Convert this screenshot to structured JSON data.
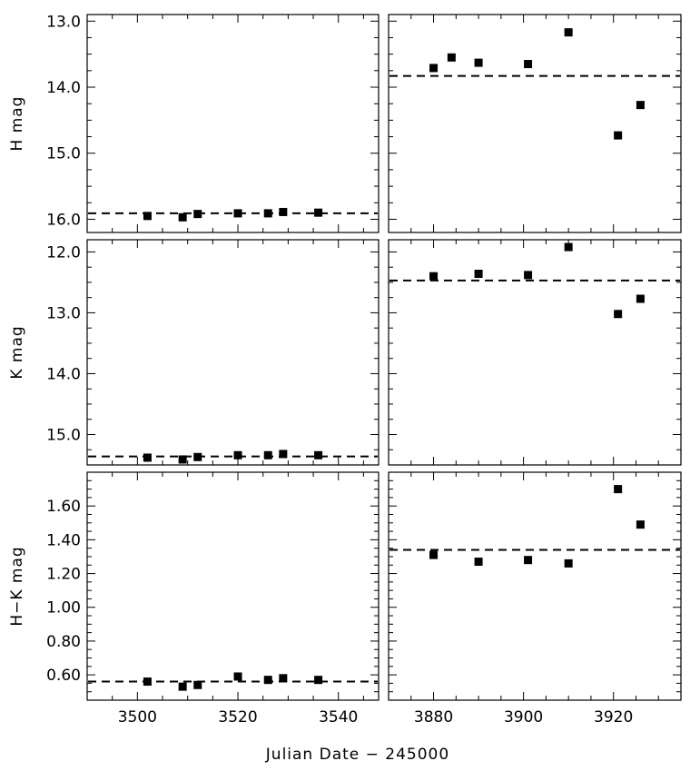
{
  "chart_data": [
    {
      "type": "scatter",
      "panel": "H-left",
      "ylabel": "H mag",
      "xlim": [
        3490,
        3548
      ],
      "ylim": [
        16.2,
        12.9
      ],
      "y_inverted": true,
      "yticks": [
        13.0,
        14.0,
        15.0,
        16.0
      ],
      "ytick_labels": [
        "13.0",
        "14.0",
        "15.0",
        "16.0"
      ],
      "x_tick_labels_visible": false,
      "reference_line": 15.91,
      "points": [
        {
          "x": 3502,
          "y": 15.95
        },
        {
          "x": 3509,
          "y": 15.97
        },
        {
          "x": 3512,
          "y": 15.92
        },
        {
          "x": 3520,
          "y": 15.91
        },
        {
          "x": 3526,
          "y": 15.91
        },
        {
          "x": 3529,
          "y": 15.89
        },
        {
          "x": 3536,
          "y": 15.9
        }
      ]
    },
    {
      "type": "scatter",
      "panel": "H-right",
      "xlim": [
        3870,
        3935
      ],
      "ylim": [
        16.2,
        12.9
      ],
      "y_inverted": true,
      "x_tick_labels_visible": false,
      "reference_line": 13.83,
      "points": [
        {
          "x": 3880,
          "y": 13.71
        },
        {
          "x": 3884,
          "y": 13.55
        },
        {
          "x": 3890,
          "y": 13.63
        },
        {
          "x": 3901,
          "y": 13.65
        },
        {
          "x": 3910,
          "y": 13.17
        },
        {
          "x": 3921,
          "y": 14.73
        },
        {
          "x": 3926,
          "y": 14.27
        }
      ]
    },
    {
      "type": "scatter",
      "panel": "K-left",
      "ylabel": "K mag",
      "xlim": [
        3490,
        3548
      ],
      "ylim": [
        15.5,
        11.8
      ],
      "y_inverted": true,
      "yticks": [
        12.0,
        13.0,
        14.0,
        15.0
      ],
      "ytick_labels": [
        "12.0",
        "13.0",
        "14.0",
        "15.0"
      ],
      "x_tick_labels_visible": false,
      "reference_line": 15.36,
      "points": [
        {
          "x": 3502,
          "y": 15.38
        },
        {
          "x": 3509,
          "y": 15.41
        },
        {
          "x": 3512,
          "y": 15.37
        },
        {
          "x": 3520,
          "y": 15.34
        },
        {
          "x": 3526,
          "y": 15.34
        },
        {
          "x": 3529,
          "y": 15.32
        },
        {
          "x": 3536,
          "y": 15.34
        }
      ]
    },
    {
      "type": "scatter",
      "panel": "K-right",
      "xlim": [
        3870,
        3935
      ],
      "ylim": [
        15.5,
        11.8
      ],
      "y_inverted": true,
      "x_tick_labels_visible": false,
      "reference_line": 12.47,
      "points": [
        {
          "x": 3880,
          "y": 12.4
        },
        {
          "x": 3890,
          "y": 12.36
        },
        {
          "x": 3901,
          "y": 12.38
        },
        {
          "x": 3910,
          "y": 11.92
        },
        {
          "x": 3921,
          "y": 13.02
        },
        {
          "x": 3926,
          "y": 12.77
        }
      ]
    },
    {
      "type": "scatter",
      "panel": "HK-left",
      "ylabel": "H−K mag",
      "xlim": [
        3490,
        3548
      ],
      "ylim": [
        0.45,
        1.8
      ],
      "yticks": [
        0.6,
        0.8,
        1.0,
        1.2,
        1.4,
        1.6
      ],
      "ytick_labels": [
        "0.60",
        "0.80",
        "1.00",
        "1.20",
        "1.40",
        "1.60"
      ],
      "xticks": [
        3500,
        3520,
        3540
      ],
      "xtick_labels": [
        "3500",
        "3520",
        "3540"
      ],
      "reference_line": 0.56,
      "points": [
        {
          "x": 3502,
          "y": 0.56
        },
        {
          "x": 3509,
          "y": 0.53
        },
        {
          "x": 3512,
          "y": 0.54
        },
        {
          "x": 3520,
          "y": 0.59
        },
        {
          "x": 3526,
          "y": 0.57
        },
        {
          "x": 3529,
          "y": 0.58
        },
        {
          "x": 3536,
          "y": 0.57
        }
      ]
    },
    {
      "type": "scatter",
      "panel": "HK-right",
      "xlim": [
        3870,
        3935
      ],
      "ylim": [
        0.45,
        1.8
      ],
      "xticks": [
        3880,
        3900,
        3920
      ],
      "xtick_labels": [
        "3880",
        "3900",
        "3920"
      ],
      "reference_line": 1.34,
      "points": [
        {
          "x": 3880,
          "y": 1.31
        },
        {
          "x": 3890,
          "y": 1.27
        },
        {
          "x": 3901,
          "y": 1.28
        },
        {
          "x": 3910,
          "y": 1.26
        },
        {
          "x": 3921,
          "y": 1.7
        },
        {
          "x": 3926,
          "y": 1.49
        }
      ]
    }
  ],
  "xlabel": "Julian Date − 245000"
}
